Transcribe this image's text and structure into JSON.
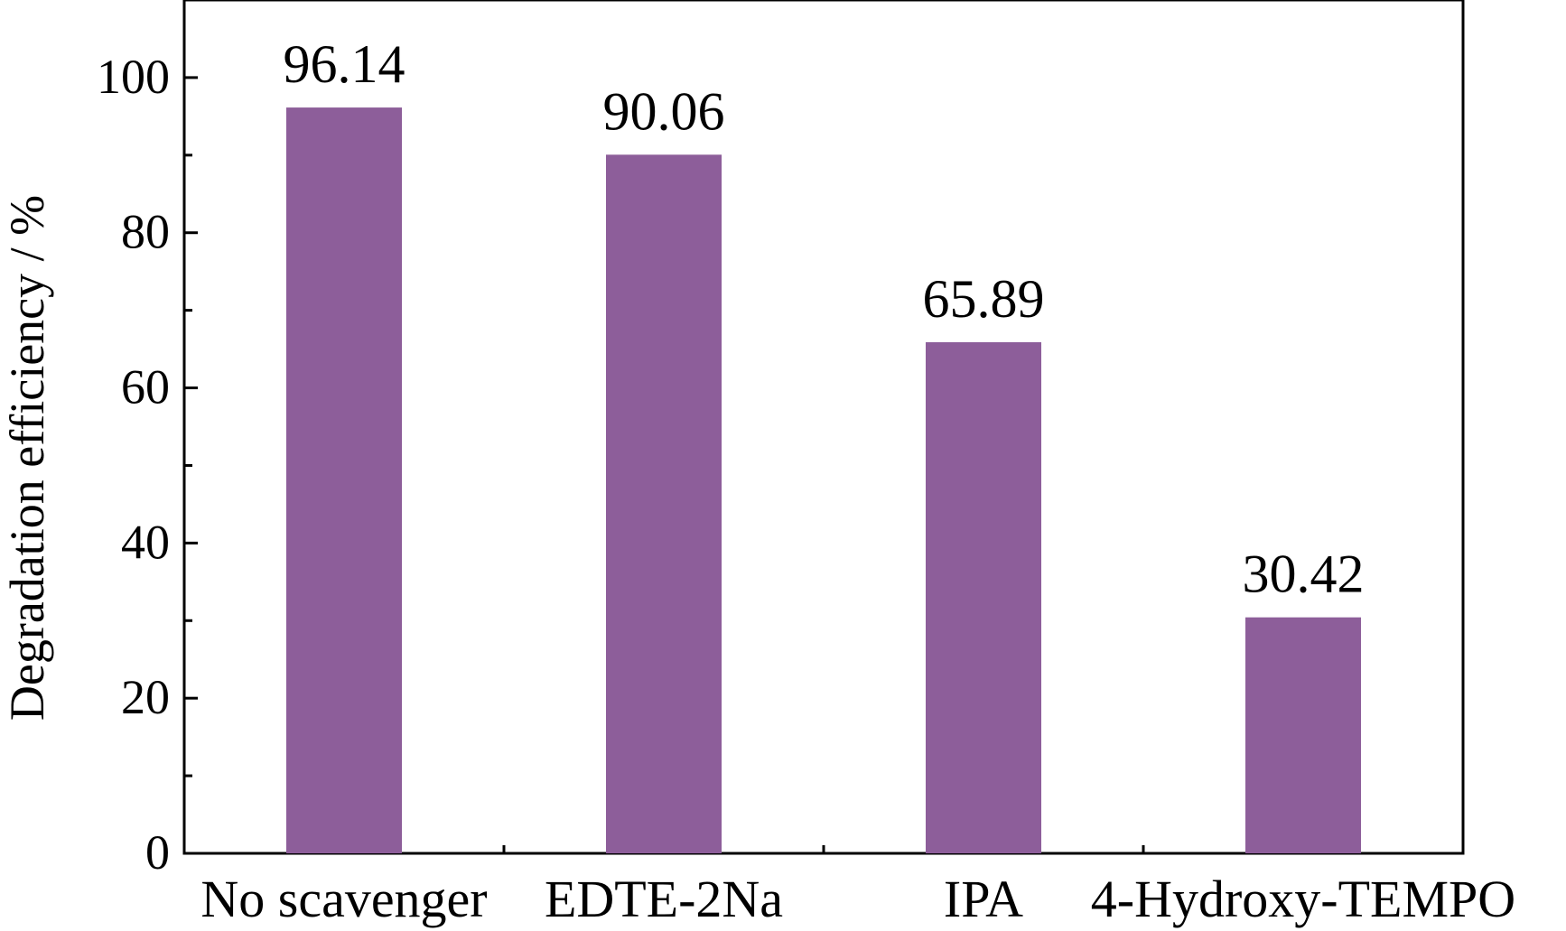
{
  "chart_data": {
    "type": "bar",
    "categories": [
      "No scavenger",
      "EDTE-2Na",
      "IPA",
      "4-Hydroxy-TEMPO"
    ],
    "values": [
      96.14,
      90.06,
      65.89,
      30.42
    ],
    "data_labels": [
      "96.14",
      "90.06",
      "65.89",
      "30.42"
    ],
    "ylabel": "Degradation efficiency / %",
    "xlabel": "",
    "ylim": [
      0,
      110
    ],
    "yticks": [
      0,
      20,
      40,
      60,
      80,
      100
    ],
    "ytick_labels": [
      "0",
      "20",
      "40",
      "60",
      "80",
      "100"
    ],
    "grid": false,
    "legend": "none",
    "bar_color": "#8d5e9a",
    "axis_color": "#000000"
  }
}
